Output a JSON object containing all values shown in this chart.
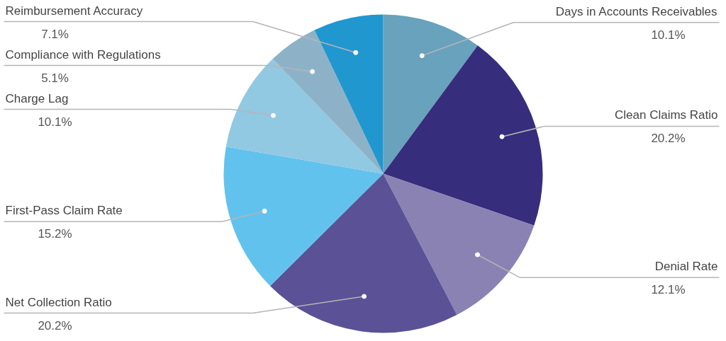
{
  "chart_data": {
    "type": "pie",
    "categories": [
      "Days in Accounts Receivables",
      "Clean Claims Ratio",
      "Denial Rate",
      "Net Collection Ratio",
      "First-Pass Claim Rate",
      "Charge Lag",
      "Compliance with Regulations",
      "Reimbursement Accuracy"
    ],
    "values": [
      10.1,
      20.2,
      12.1,
      20.2,
      15.2,
      10.1,
      5.1,
      7.1
    ],
    "value_labels": [
      "10.1%",
      "20.2%",
      "12.1%",
      "20.2%",
      "15.2%",
      "10.1%",
      "5.1%",
      "7.1%"
    ],
    "colors": [
      "#68a2bd",
      "#362d7c",
      "#8982b3",
      "#5a5196",
      "#62c2ee",
      "#91c8e2",
      "#8db2c7",
      "#2197d0"
    ]
  }
}
